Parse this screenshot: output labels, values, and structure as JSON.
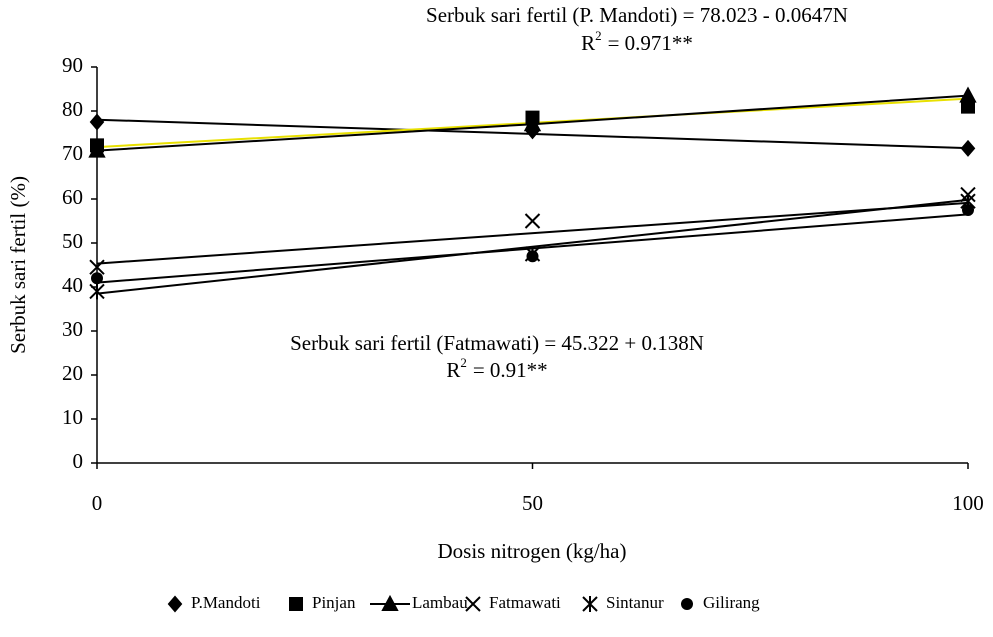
{
  "chart_data": {
    "type": "line",
    "x_label": "Dosis nitrogen (kg/ha)",
    "y_label": "Serbuk sari fertil (%)",
    "x": [
      0,
      50,
      100
    ],
    "xlim": [
      0,
      100
    ],
    "xticks": [
      0,
      50,
      100
    ],
    "ylim": [
      0,
      90
    ],
    "yticks": [
      0,
      10,
      20,
      30,
      40,
      50,
      60,
      70,
      80,
      90
    ],
    "annotations": [
      {
        "text": "Serbuk sari fertil (P. Mandoti) = 78.023 - 0.0647N",
        "r2_base": "R",
        "r2_sup": "2",
        "r2_value": "= 0.971**"
      },
      {
        "text": "Serbuk sari fertil (Fatmawati) = 45.322 + 0.138N",
        "r2_base": "R",
        "r2_sup": "2",
        "r2_value": "= 0.91**"
      }
    ],
    "series": [
      {
        "name": "P.Mandoti",
        "marker": "diamond",
        "color": "#000000",
        "values": [
          77.5,
          75.5,
          71.5
        ],
        "line": false,
        "trend": [
          78.023,
          71.553
        ],
        "trend_color": "#000000"
      },
      {
        "name": "Pinjan",
        "marker": "square",
        "color": "#000000",
        "values": [
          72.2,
          78.5,
          81
        ],
        "line": false,
        "trend": [
          71.8,
          82.8
        ],
        "trend_color": "#e8e000"
      },
      {
        "name": "Lambau",
        "marker": "triangle",
        "color": "#000000",
        "values": [
          71,
          77,
          83.5
        ],
        "line": true
      },
      {
        "name": "Fatmawati",
        "marker": "x",
        "color": "#000000",
        "values": [
          44.5,
          55,
          61
        ],
        "line": false,
        "trend": [
          45.322,
          59.122
        ],
        "trend_color": "#000000"
      },
      {
        "name": "Sintanur",
        "marker": "star",
        "color": "#000000",
        "values": [
          39,
          47.5,
          59.5
        ],
        "line": false,
        "trend": [
          38.5,
          59.8
        ],
        "trend_color": "#000000"
      },
      {
        "name": "Gilirang",
        "marker": "circle",
        "color": "#000000",
        "values": [
          42,
          47,
          57.5
        ],
        "line": false,
        "trend": [
          41,
          56.5
        ],
        "trend_color": "#000000"
      }
    ]
  }
}
